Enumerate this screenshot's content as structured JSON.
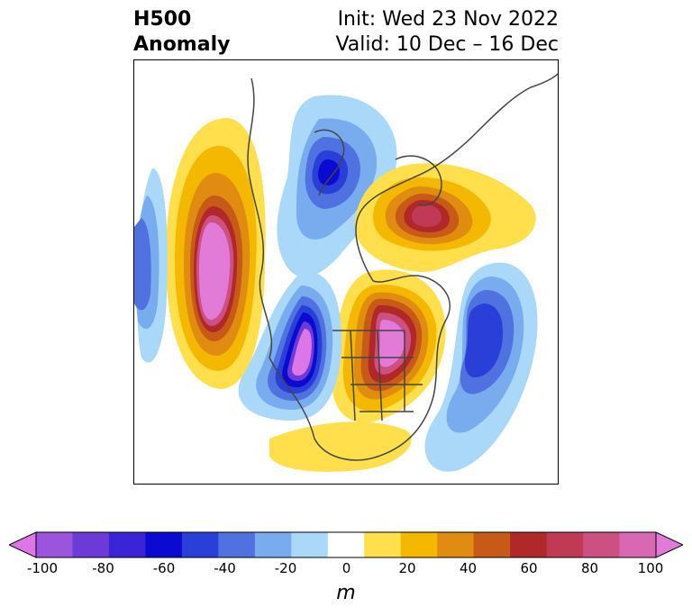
{
  "header": {
    "title_line1": "H500",
    "title_line2": "Anomaly",
    "init": "Init: Wed 23 Nov 2022",
    "valid": "Valid: 10 Dec – 16 Dec"
  },
  "colorbar": {
    "unit": "m",
    "ticks": [
      "-100",
      "-80",
      "-60",
      "-40",
      "-20",
      "0",
      "20",
      "40",
      "60",
      "80",
      "100"
    ],
    "colors": [
      "#dd77e8",
      "#9b55dd",
      "#6c3ad6",
      "#3b24d6",
      "#0a0ad0",
      "#2a3ed8",
      "#4f72e0",
      "#79acee",
      "#a9d8f8",
      "#ffffff",
      "#ffe04c",
      "#f4b800",
      "#e08c10",
      "#c85a18",
      "#b02828",
      "#c03a55",
      "#cc5080",
      "#d868b4",
      "#e27ad8"
    ]
  },
  "map": {
    "features": [
      "height-anomaly-contours",
      "coastlines",
      "country-borders",
      "state-borders"
    ]
  }
}
